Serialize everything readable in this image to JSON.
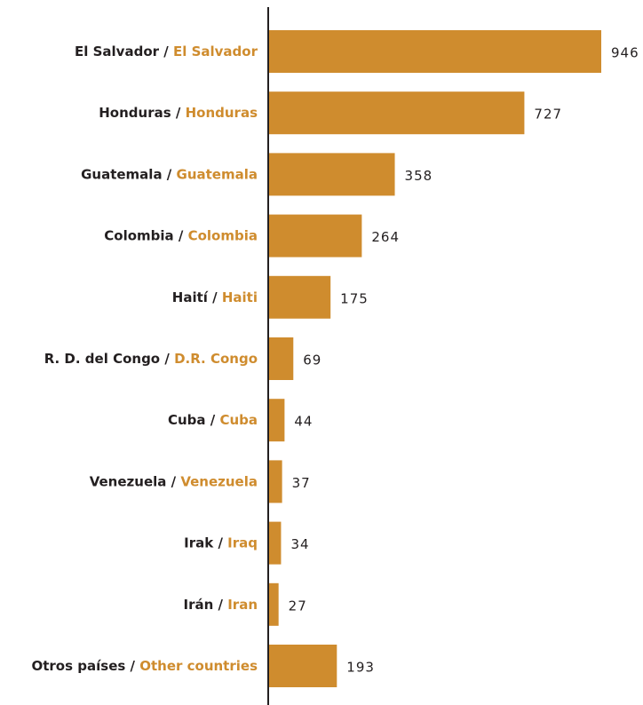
{
  "chart_data": {
    "type": "bar",
    "orientation": "horizontal",
    "color": "#cf8c2e",
    "separator": " / ",
    "categories": [
      "El Salvador",
      "Honduras",
      "Guatemala",
      "Colombia",
      "Haití",
      "R. D. del Congo",
      "Cuba",
      "Venezuela",
      "Irak",
      "Irán",
      "Otros países"
    ],
    "categories_en": [
      "El Salvador",
      "Honduras",
      "Guatemala",
      "Colombia",
      "Haiti",
      "D.R. Congo",
      "Cuba",
      "Venezuela",
      "Iraq",
      "Iran",
      "Other countries"
    ],
    "values": [
      946,
      727,
      358,
      264,
      175,
      69,
      44,
      37,
      34,
      27,
      193
    ]
  }
}
